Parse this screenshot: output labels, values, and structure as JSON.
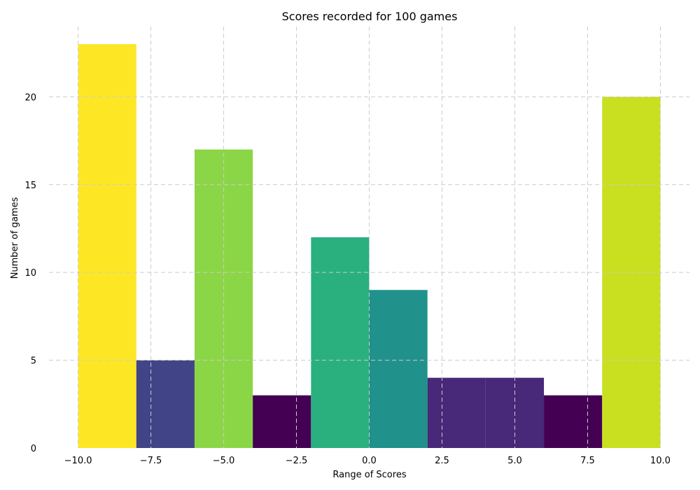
{
  "chart_data": {
    "type": "bar",
    "title": "Scores recorded for 100 games",
    "xlabel": "Range of Scores",
    "ylabel": "Number of games",
    "xlim": [
      -11,
      11
    ],
    "ylim": [
      0,
      24
    ],
    "grid": true,
    "x_ticks": [
      -10.0,
      -7.5,
      -5.0,
      -2.5,
      0.0,
      2.5,
      5.0,
      7.5,
      10.0
    ],
    "x_tick_labels": [
      "−10.0",
      "−7.5",
      "−5.0",
      "−2.5",
      "0.0",
      "2.5",
      "5.0",
      "7.5",
      "10.0"
    ],
    "y_ticks": [
      0,
      5,
      10,
      15,
      20
    ],
    "y_tick_labels": [
      "0",
      "5",
      "10",
      "15",
      "20"
    ],
    "bins": [
      {
        "start": -10,
        "end": -8,
        "value": 23,
        "color": "#fde725"
      },
      {
        "start": -8,
        "end": -6,
        "value": 5,
        "color": "#414487"
      },
      {
        "start": -6,
        "end": -4,
        "value": 17,
        "color": "#8bd646"
      },
      {
        "start": -4,
        "end": -2,
        "value": 3,
        "color": "#440154"
      },
      {
        "start": -2,
        "end": 0,
        "value": 12,
        "color": "#2ab07f"
      },
      {
        "start": 0,
        "end": 2,
        "value": 9,
        "color": "#21918c"
      },
      {
        "start": 2,
        "end": 4,
        "value": 4,
        "color": "#482878"
      },
      {
        "start": 4,
        "end": 6,
        "value": 4,
        "color": "#482878"
      },
      {
        "start": 6,
        "end": 8,
        "value": 3,
        "color": "#440154"
      },
      {
        "start": 8,
        "end": 10,
        "value": 20,
        "color": "#c8e020"
      }
    ]
  }
}
